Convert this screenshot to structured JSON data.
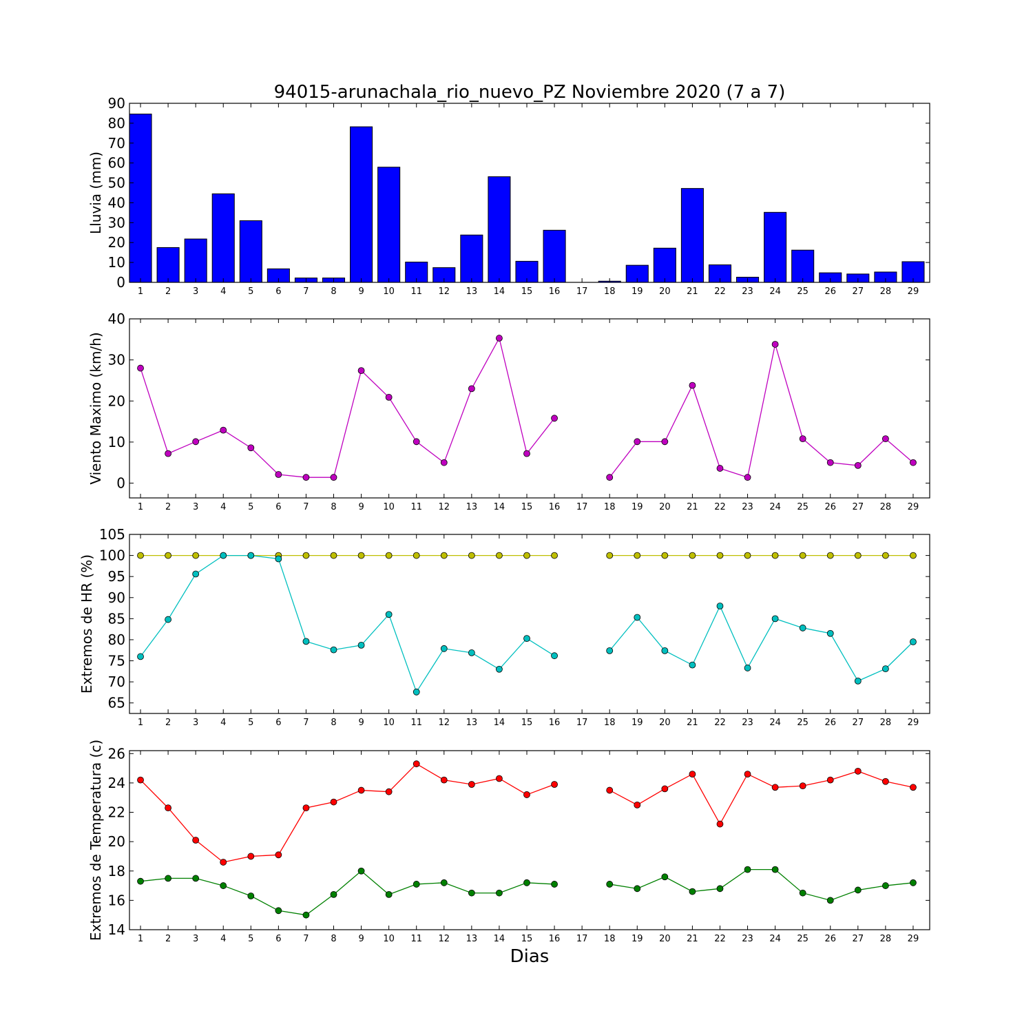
{
  "chart_data": [
    {
      "type": "bar",
      "title": "94015-arunachala_rio_nuevo_PZ Noviembre 2020  (7 a 7)",
      "ylabel": "Lluvia (mm)",
      "xlabel": "",
      "ylim": [
        0,
        90
      ],
      "yticks": [
        0,
        10,
        20,
        30,
        40,
        50,
        60,
        70,
        80,
        90
      ],
      "categories": [
        "1",
        "2",
        "3",
        "4",
        "5",
        "6",
        "7",
        "8",
        "9",
        "10",
        "11",
        "12",
        "13",
        "14",
        "15",
        "16",
        "17",
        "18",
        "19",
        "20",
        "21",
        "22",
        "23",
        "24",
        "25",
        "26",
        "27",
        "28",
        "29"
      ],
      "values": [
        84.6,
        17.5,
        21.8,
        44.5,
        31.0,
        6.8,
        2.2,
        2.2,
        78.2,
        57.9,
        10.2,
        7.4,
        23.8,
        53.1,
        10.6,
        26.2,
        0,
        0.6,
        8.6,
        17.2,
        47.2,
        8.8,
        2.6,
        35.2,
        16.2,
        4.8,
        4.2,
        5.2,
        10.4
      ],
      "color": "#0000ff",
      "grid": false
    },
    {
      "type": "line",
      "ylabel": "Viento Maximo (km/h)",
      "xlabel": "",
      "ylim": [
        -3.6,
        40
      ],
      "yticks": [
        0,
        10,
        20,
        30,
        40
      ],
      "x": [
        1,
        2,
        3,
        4,
        5,
        6,
        7,
        8,
        9,
        10,
        11,
        12,
        13,
        14,
        15,
        16,
        17,
        18,
        19,
        20,
        21,
        22,
        23,
        24,
        25,
        26,
        27,
        28,
        29
      ],
      "series": [
        {
          "values": [
            28.0,
            7.2,
            10.1,
            12.9,
            8.6,
            2.1,
            1.4,
            1.4,
            27.4,
            20.9,
            10.1,
            5.0,
            23.0,
            35.3,
            7.2,
            15.8,
            null,
            1.4,
            10.1,
            10.1,
            23.8,
            3.6,
            1.4,
            33.8,
            10.8,
            5.0,
            4.3,
            10.8,
            5.0
          ],
          "color": "#bf00bf"
        }
      ],
      "grid": false
    },
    {
      "type": "line",
      "ylabel": "Extremos de HR (%)",
      "xlabel": "",
      "ylim": [
        62.5,
        105
      ],
      "yticks": [
        65,
        70,
        75,
        80,
        85,
        90,
        95,
        100,
        105
      ],
      "x": [
        1,
        2,
        3,
        4,
        5,
        6,
        7,
        8,
        9,
        10,
        11,
        12,
        13,
        14,
        15,
        16,
        17,
        18,
        19,
        20,
        21,
        22,
        23,
        24,
        25,
        26,
        27,
        28,
        29
      ],
      "series": [
        {
          "values": [
            100,
            100,
            100,
            100,
            100,
            100,
            100,
            100,
            100,
            100,
            100,
            100,
            100,
            100,
            100,
            100,
            null,
            100,
            100,
            100,
            100,
            100,
            100,
            100,
            100,
            100,
            100,
            100,
            100
          ],
          "color": "#bfbf00"
        },
        {
          "values": [
            76.0,
            84.8,
            95.6,
            100,
            100,
            99.2,
            79.6,
            77.6,
            78.7,
            86.0,
            67.6,
            77.9,
            76.9,
            73.0,
            80.3,
            76.2,
            null,
            77.4,
            85.3,
            77.4,
            74.0,
            88.0,
            73.3,
            85.0,
            82.8,
            81.5,
            70.2,
            73.1,
            79.5
          ],
          "color": "#00bfbf"
        }
      ],
      "grid": false
    },
    {
      "type": "line",
      "ylabel": "Extremos de Temperatura (c)",
      "xlabel": "Dias",
      "ylim": [
        14,
        26.2
      ],
      "yticks": [
        14,
        16,
        18,
        20,
        22,
        24,
        26
      ],
      "x": [
        1,
        2,
        3,
        4,
        5,
        6,
        7,
        8,
        9,
        10,
        11,
        12,
        13,
        14,
        15,
        16,
        17,
        18,
        19,
        20,
        21,
        22,
        23,
        24,
        25,
        26,
        27,
        28,
        29
      ],
      "series": [
        {
          "values": [
            24.2,
            22.3,
            20.1,
            18.6,
            19.0,
            19.1,
            22.3,
            22.7,
            23.5,
            23.4,
            25.3,
            24.2,
            23.9,
            24.3,
            23.2,
            23.9,
            null,
            23.5,
            22.5,
            23.6,
            24.6,
            21.2,
            24.6,
            23.7,
            23.8,
            24.2,
            24.8,
            24.1,
            23.7
          ],
          "color": "#ff0000"
        },
        {
          "values": [
            17.3,
            17.5,
            17.5,
            17.0,
            16.3,
            15.3,
            15.0,
            16.4,
            18.0,
            16.4,
            17.1,
            17.2,
            16.5,
            16.5,
            17.2,
            17.1,
            null,
            17.1,
            16.8,
            17.6,
            16.6,
            16.8,
            18.1,
            18.1,
            16.5,
            16.0,
            16.7,
            17.0,
            17.2
          ],
          "color": "#008000"
        }
      ],
      "grid": false
    }
  ]
}
